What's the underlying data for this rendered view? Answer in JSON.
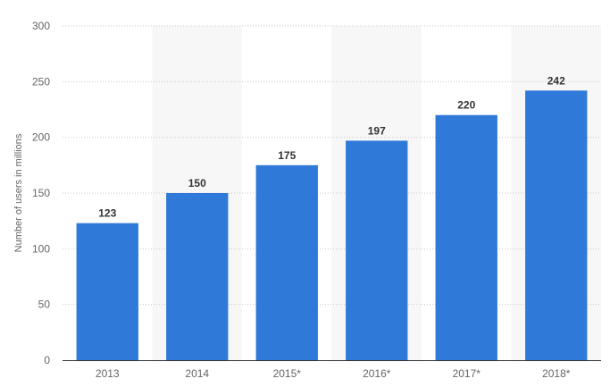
{
  "chart_data": {
    "type": "bar",
    "categories": [
      "2013",
      "2014",
      "2015*",
      "2016*",
      "2017*",
      "2018*"
    ],
    "values": [
      123,
      150,
      175,
      197,
      220,
      242
    ],
    "data_labels": [
      "123",
      "150",
      "175",
      "197",
      "220",
      "242"
    ],
    "title": "",
    "xlabel": "",
    "ylabel": "Number of users in millions",
    "ylim": [
      0,
      300
    ],
    "yticks": [
      0,
      50,
      100,
      150,
      200,
      250,
      300
    ],
    "ytick_labels": [
      "0",
      "50",
      "100",
      "150",
      "200",
      "250",
      "300"
    ],
    "grid": true,
    "legend": "none",
    "colors": {
      "bar": "#2f7ad8",
      "band": "#f7f7f7",
      "grid": "#c8c8c8",
      "axis": "#333333"
    }
  }
}
